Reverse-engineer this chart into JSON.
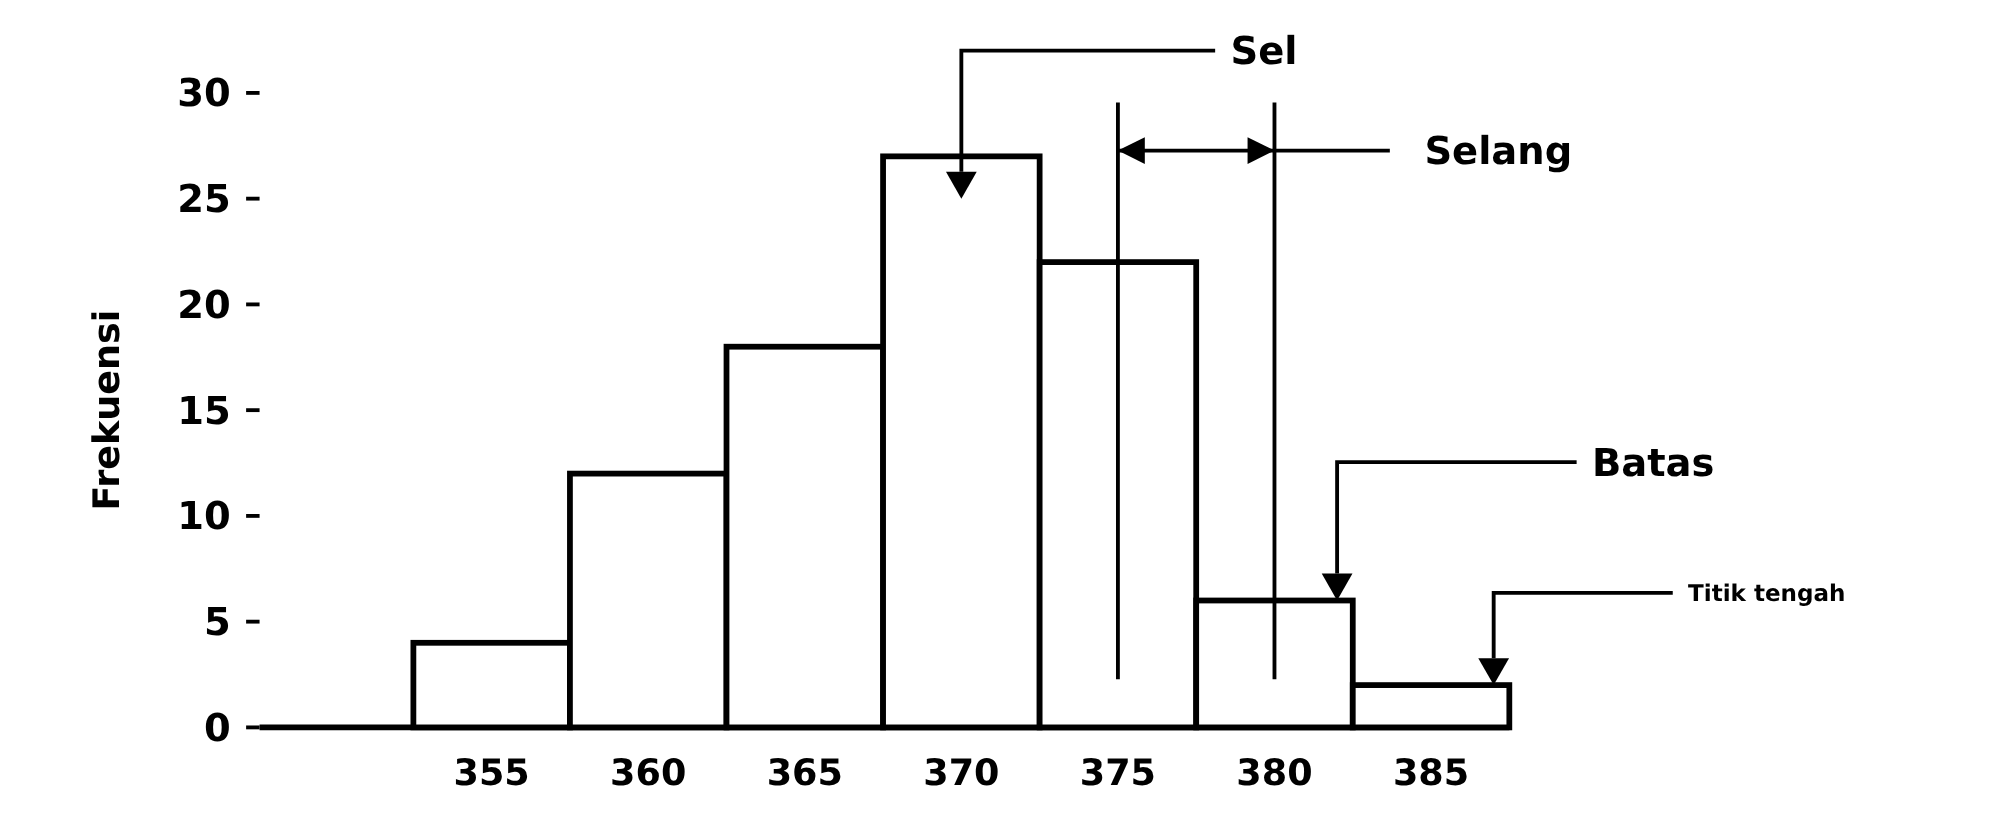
{
  "chart_data": {
    "type": "bar",
    "ylabel": "Frekuensi",
    "categories": [
      "355",
      "360",
      "365",
      "370",
      "375",
      "380",
      "385"
    ],
    "values": [
      4,
      12,
      18,
      27,
      22,
      6,
      2
    ],
    "color": "#ffffff",
    "ylim": [
      0,
      30
    ],
    "yticks": [
      0,
      5,
      10,
      15,
      20,
      25,
      30
    ],
    "annotations": [
      "Sel",
      "Selang",
      "Batas",
      "Titik tengah"
    ]
  }
}
